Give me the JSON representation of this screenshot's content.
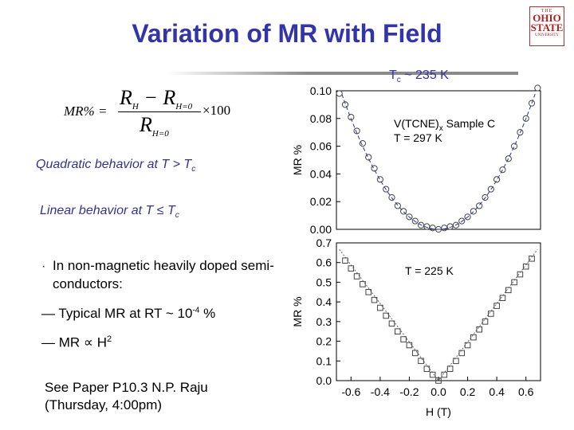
{
  "slide": {
    "title": "Variation of MR with Field",
    "logo": {
      "top": "THE",
      "line1": "OHIO",
      "line2": "STATE",
      "bottom": "UNIVERSITY"
    },
    "tc_label": {
      "symbol": "T",
      "sub": "c",
      "value": " ~ 235 K"
    },
    "formula": {
      "lhs": "MR% =",
      "num_a": "R",
      "num_a_sub": "H",
      "num_minus": " − ",
      "num_b": "R",
      "num_b_sub": "H=0",
      "den": "R",
      "den_sub": "H=0",
      "times": "×100"
    },
    "quadratic": {
      "text": "Quadratic behavior at T > T",
      "sub": "c"
    },
    "linear": {
      "text": "Linear behavior at T ≤ T",
      "sub": "c"
    },
    "bullet": {
      "symbol": "·",
      "text": "In non-magnetic heavily doped semi-conductors:"
    },
    "dash1": {
      "prefix": "— Typical MR at RT ~ 10",
      "exp": "-4",
      "suffix": " %"
    },
    "dash2": {
      "prefix": "— MR ∝ H",
      "exp": "2"
    },
    "paper": {
      "line1": "See Paper P10.3 N.P. Raju",
      "line2": "(Thursday, 4:00pm)"
    }
  },
  "chart_data": [
    {
      "type": "scatter",
      "ylabel": "MR %",
      "ylim": [
        0,
        0.1
      ],
      "xlim": [
        -0.7,
        0.7
      ],
      "yticks": [
        "0.10",
        "0.08",
        "0.06",
        "0.04",
        "0.02",
        "0.00"
      ],
      "annotations": [
        {
          "base": "V(TCNE)",
          "sub": "x",
          "rest": "  Sample C"
        },
        {
          "text": "T = 297 K"
        }
      ],
      "marker": "circle",
      "fit": {
        "kind": "quadratic",
        "coefficient": 0.222
      },
      "series": [
        {
          "x": [
            -0.68,
            -0.64,
            -0.6,
            -0.56,
            -0.52,
            -0.48,
            -0.44,
            -0.4,
            -0.36,
            -0.32,
            -0.28,
            -0.24,
            -0.2,
            -0.16,
            -0.12,
            -0.08,
            -0.04,
            0.0,
            0.04,
            0.08,
            0.12,
            0.16,
            0.2,
            0.24,
            0.28,
            0.32,
            0.36,
            0.4,
            0.44,
            0.48,
            0.52,
            0.56,
            0.6,
            0.64,
            0.68
          ],
          "y": [
            0.098,
            0.09,
            0.081,
            0.071,
            0.062,
            0.052,
            0.044,
            0.036,
            0.029,
            0.023,
            0.017,
            0.013,
            0.009,
            0.006,
            0.003,
            0.002,
            0.001,
            0.0,
            0.001,
            0.002,
            0.003,
            0.006,
            0.009,
            0.013,
            0.017,
            0.023,
            0.029,
            0.036,
            0.043,
            0.051,
            0.06,
            0.07,
            0.08,
            0.091,
            0.102
          ]
        }
      ]
    },
    {
      "type": "scatter",
      "xlabel": "H (T)",
      "ylabel": "MR %",
      "ylim": [
        0,
        0.7
      ],
      "xlim": [
        -0.7,
        0.7
      ],
      "xticks": [
        "-0.6",
        "-0.4",
        "-0.2",
        "0.0",
        "0.2",
        "0.4",
        "0.6"
      ],
      "yticks": [
        "0.7",
        "0.6",
        "0.5",
        "0.4",
        "0.3",
        "0.2",
        "0.1",
        "0.0"
      ],
      "annotations": [
        {
          "text": "T = 225 K"
        }
      ],
      "marker": "square",
      "fit": {
        "kind": "linear",
        "slope": 0.98
      },
      "series": [
        {
          "x": [
            -0.64,
            -0.6,
            -0.56,
            -0.52,
            -0.48,
            -0.44,
            -0.4,
            -0.36,
            -0.32,
            -0.28,
            -0.24,
            -0.2,
            -0.16,
            -0.12,
            -0.08,
            -0.04,
            0.0,
            0.04,
            0.08,
            0.12,
            0.16,
            0.2,
            0.24,
            0.28,
            0.32,
            0.36,
            0.4,
            0.44,
            0.48,
            0.52,
            0.56,
            0.6,
            0.64
          ],
          "y": [
            0.61,
            0.57,
            0.53,
            0.49,
            0.45,
            0.41,
            0.37,
            0.33,
            0.29,
            0.25,
            0.21,
            0.18,
            0.14,
            0.1,
            0.06,
            0.03,
            0.0,
            0.03,
            0.06,
            0.1,
            0.14,
            0.18,
            0.22,
            0.26,
            0.3,
            0.34,
            0.38,
            0.42,
            0.46,
            0.5,
            0.54,
            0.58,
            0.62
          ]
        }
      ]
    }
  ]
}
